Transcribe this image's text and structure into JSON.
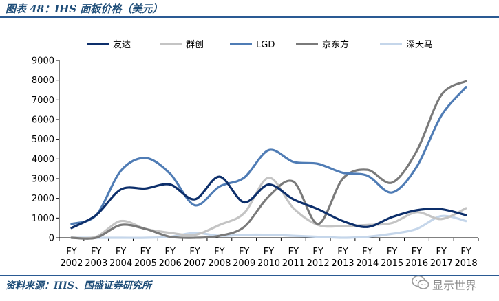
{
  "figure": {
    "title": "图表 48：IHS 面板价格（美元）",
    "source": "资料来源：IHS、国盛证券研究所",
    "watermark": "显示世界"
  },
  "chart_data": {
    "type": "line",
    "title": "",
    "xlabel": "",
    "ylabel": "",
    "x_labels": [
      [
        "FY",
        "2002"
      ],
      [
        "FY",
        "2003"
      ],
      [
        "FY",
        "2004"
      ],
      [
        "FY",
        "2005"
      ],
      [
        "FY",
        "2006"
      ],
      [
        "FY",
        "2007"
      ],
      [
        "FY",
        "2008"
      ],
      [
        "FY",
        "2009"
      ],
      [
        "FY",
        "2010"
      ],
      [
        "FY",
        "2011"
      ],
      [
        "FY",
        "2012"
      ],
      [
        "FY",
        "2013"
      ],
      [
        "FY",
        "2014"
      ],
      [
        "FY",
        "2015"
      ],
      [
        "FY",
        "2016"
      ],
      [
        "FY",
        "2017"
      ],
      [
        "FY",
        "2018"
      ]
    ],
    "ylim": [
      0,
      9000
    ],
    "yticks": [
      0,
      1000,
      2000,
      3000,
      4000,
      5000,
      6000,
      7000,
      8000,
      9000
    ],
    "legend_position": "top",
    "grid": false,
    "series": [
      {
        "name": "友达",
        "color": "#0d2f6b",
        "values": [
          500,
          1150,
          2450,
          2500,
          2700,
          1950,
          3100,
          1800,
          2700,
          1950,
          1450,
          850,
          550,
          1050,
          1400,
          1450,
          1150
        ]
      },
      {
        "name": "群创",
        "color": "#c4c4c4",
        "values": [
          0,
          50,
          850,
          450,
          250,
          150,
          650,
          1250,
          3050,
          1500,
          650,
          600,
          650,
          750,
          1300,
          950,
          1500
        ]
      },
      {
        "name": "LGD",
        "color": "#4f7cb5",
        "values": [
          700,
          1150,
          3400,
          4050,
          3250,
          1650,
          2600,
          3050,
          4450,
          3850,
          3750,
          3300,
          3150,
          2300,
          3600,
          6200,
          7650
        ]
      },
      {
        "name": "京东方",
        "color": "#7a7a7a",
        "values": [
          0,
          0,
          650,
          450,
          50,
          0,
          100,
          550,
          2100,
          2850,
          700,
          3000,
          3450,
          2800,
          4400,
          7250,
          7950
        ]
      },
      {
        "name": "深天马",
        "color": "#c5d6ea",
        "values": [
          0,
          0,
          0,
          0,
          50,
          250,
          100,
          150,
          150,
          100,
          50,
          0,
          50,
          200,
          450,
          1100,
          850
        ]
      }
    ]
  }
}
